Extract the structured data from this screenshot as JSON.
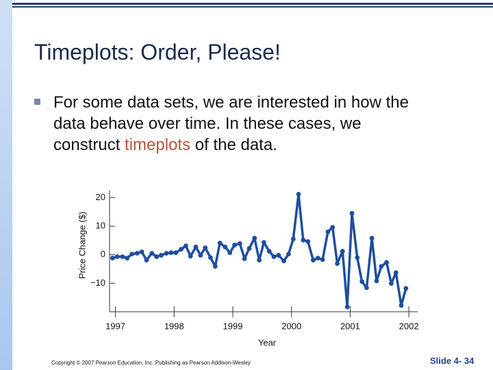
{
  "slide": {
    "title": "Timeplots: Order, Please!",
    "bullet": {
      "lines": [
        "For some data sets, we are interested in how the",
        "data behave over time. In these cases, we"
      ],
      "last_line": [
        "construct",
        "timeplots",
        "of the data."
      ]
    }
  },
  "footer": {
    "copyright": "Copyright © 2007 Pearson Education, Inc. Publishing as Pearson Addison-Wesley",
    "slide_number": "Slide 4- 34"
  },
  "chart_data": {
    "type": "line",
    "xlabel": "Year",
    "ylabel": "Price Change ($)",
    "color": "#1f4ea0",
    "xlim": [
      1996.9,
      2002.15
    ],
    "xticks": [
      1997,
      1998,
      1999,
      2000,
      2001,
      2002
    ],
    "ylim": [
      -20,
      22.5
    ],
    "yticks": [
      20,
      10,
      0,
      {
        "value": -10,
        "label": "−10"
      }
    ],
    "grid": false,
    "x": [
      1996.95,
      1997.03,
      1997.12,
      1997.2,
      1997.28,
      1997.37,
      1997.45,
      1997.53,
      1997.62,
      1997.7,
      1997.78,
      1997.87,
      1997.95,
      1998.03,
      1998.12,
      1998.2,
      1998.28,
      1998.37,
      1998.45,
      1998.53,
      1998.62,
      1998.7,
      1998.78,
      1998.87,
      1998.95,
      1999.03,
      1999.12,
      1999.2,
      1999.28,
      1999.37,
      1999.45,
      1999.53,
      1999.62,
      1999.7,
      1999.78,
      1999.87,
      1999.95,
      2000.03,
      2000.12,
      2000.2,
      2000.28,
      2000.37,
      2000.45,
      2000.53,
      2000.62,
      2000.7,
      2000.78,
      2000.87,
      2000.95,
      2001.03,
      2001.12,
      2001.2,
      2001.28,
      2001.37,
      2001.45,
      2001.53,
      2001.62,
      2001.7,
      2001.78,
      2001.87,
      2001.95
    ],
    "values": [
      -1.2,
      -0.7,
      -0.7,
      -1.2,
      0.2,
      0.5,
      1.0,
      -1.9,
      0.5,
      -0.7,
      -0.2,
      0.5,
      0.7,
      0.7,
      1.9,
      3.1,
      -0.5,
      2.7,
      -0.2,
      2.4,
      -1.0,
      -4.1,
      4.1,
      2.7,
      0.7,
      3.4,
      3.9,
      -1.4,
      2.2,
      5.8,
      -1.9,
      4.3,
      1.2,
      -0.7,
      -0.2,
      -2.2,
      0.2,
      5.5,
      21.2,
      5.1,
      4.6,
      -1.9,
      -1.2,
      -1.7,
      8.0,
      9.6,
      -3.1,
      1.2,
      -18.3,
      14.5,
      -1.0,
      -9.4,
      -11.6,
      5.8,
      -9.2,
      -4.1,
      -2.7,
      -10.1,
      -6.3,
      -17.8,
      -11.8
    ]
  }
}
